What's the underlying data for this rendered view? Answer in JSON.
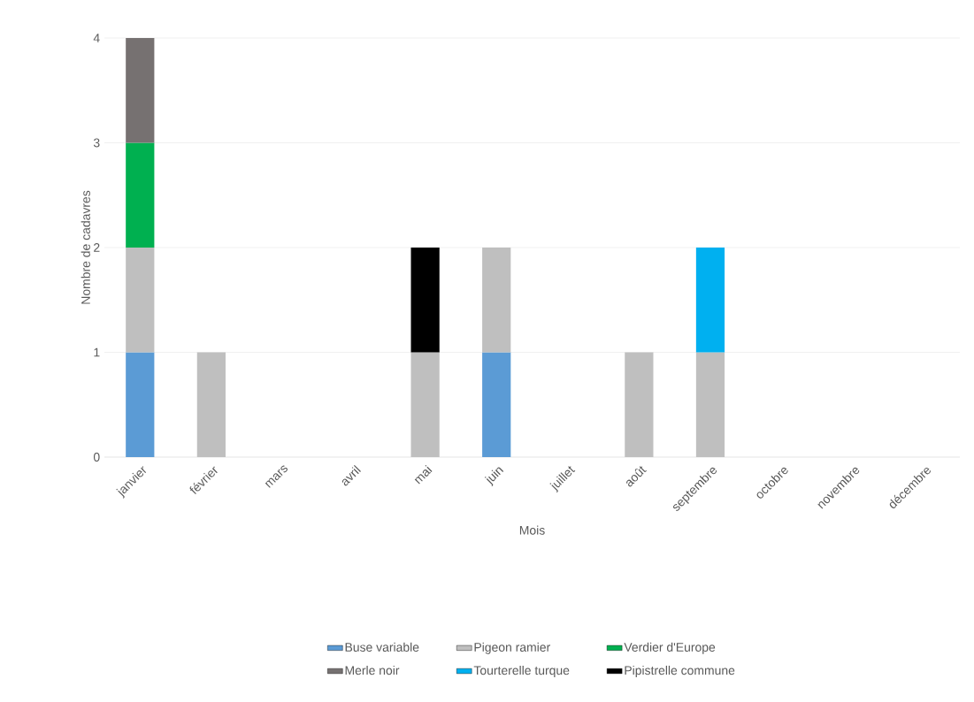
{
  "chart_data": {
    "type": "bar",
    "stacked": true,
    "xlabel": "Mois",
    "ylabel": "Nombre de cadavres",
    "categories": [
      "janvier",
      "février",
      "mars",
      "avril",
      "mai",
      "juin",
      "juillet",
      "août",
      "septembre",
      "octobre",
      "novembre",
      "décembre"
    ],
    "series": [
      {
        "name": "Buse variable",
        "color": "#5b9bd5",
        "values": [
          1,
          null,
          null,
          null,
          null,
          1,
          null,
          null,
          null,
          null,
          null,
          null
        ]
      },
      {
        "name": "Pigeon ramier",
        "color": "#bfbfbf",
        "values": [
          1,
          1,
          null,
          null,
          1,
          1,
          null,
          1,
          1,
          null,
          null,
          null
        ]
      },
      {
        "name": "Verdier d'Europe",
        "color": "#00b050",
        "values": [
          1,
          null,
          null,
          null,
          null,
          null,
          null,
          null,
          null,
          null,
          null,
          null
        ]
      },
      {
        "name": "Merle noir",
        "color": "#767171",
        "values": [
          1,
          null,
          null,
          null,
          null,
          null,
          null,
          null,
          null,
          null,
          null,
          null
        ]
      },
      {
        "name": "Tourterelle turque",
        "color": "#00b0f0",
        "values": [
          null,
          null,
          null,
          null,
          null,
          null,
          null,
          null,
          1,
          null,
          null,
          null
        ]
      },
      {
        "name": "Pipistrelle commune",
        "color": "#000000",
        "values": [
          null,
          null,
          null,
          null,
          1,
          null,
          null,
          null,
          null,
          null,
          null,
          null
        ]
      }
    ],
    "ylim": [
      0,
      4
    ],
    "yticks": [
      0,
      1,
      2,
      3,
      4
    ],
    "grid": "y",
    "legend": "bottom"
  }
}
